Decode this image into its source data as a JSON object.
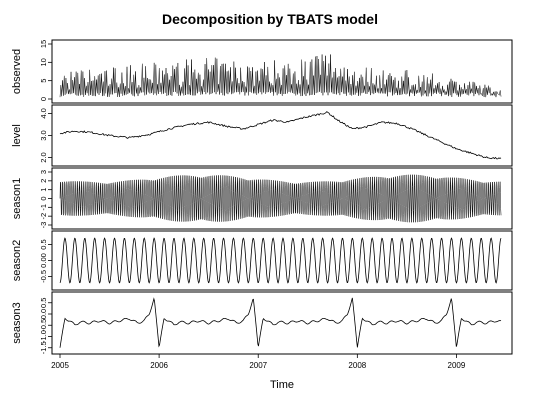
{
  "chart_data": {
    "type": "line",
    "title": "Decomposition by TBATS model",
    "xlabel": "Time",
    "x_ticks": [
      "2005",
      "2006",
      "2007",
      "2008",
      "2009"
    ],
    "xlim": [
      2005,
      2009.5
    ],
    "panels": [
      {
        "name": "observed",
        "ylim": [
          0,
          15
        ],
        "y_ticks": [
          "0",
          "5",
          "10",
          "15"
        ],
        "envelope": {
          "x": [
            2005.0,
            2005.5,
            2006.0,
            2006.5,
            2007.0,
            2007.5,
            2007.7,
            2008.0,
            2008.5,
            2009.0,
            2009.45
          ],
          "low": [
            0.5,
            0.5,
            0.8,
            0.8,
            0.8,
            0.8,
            0.8,
            0.7,
            0.7,
            0.5,
            0.5
          ],
          "high": [
            7.5,
            9.0,
            10.0,
            11.5,
            10.5,
            12.0,
            14.0,
            9.5,
            8.0,
            6.0,
            3.0
          ]
        }
      },
      {
        "name": "level",
        "ylim": [
          1.8,
          4.2
        ],
        "y_ticks": [
          "2.0",
          "3.0",
          "4.0"
        ],
        "points": {
          "x": [
            2005.0,
            2005.15,
            2005.3,
            2005.5,
            2005.7,
            2005.9,
            2006.1,
            2006.3,
            2006.5,
            2006.7,
            2006.85,
            2007.0,
            2007.15,
            2007.3,
            2007.45,
            2007.6,
            2007.7,
            2007.8,
            2007.95,
            2008.1,
            2008.25,
            2008.4,
            2008.55,
            2008.7,
            2008.85,
            2009.0,
            2009.15,
            2009.3,
            2009.45
          ],
          "y": [
            3.1,
            3.2,
            3.15,
            3.0,
            2.9,
            3.05,
            3.3,
            3.5,
            3.6,
            3.4,
            3.3,
            3.5,
            3.7,
            3.6,
            3.8,
            3.95,
            4.05,
            3.7,
            3.3,
            3.4,
            3.6,
            3.55,
            3.3,
            3.0,
            2.7,
            2.4,
            2.2,
            2.0,
            1.95
          ]
        }
      },
      {
        "name": "season1",
        "ylim": [
          -3.0,
          3.0
        ],
        "y_ticks": [
          "-3",
          "-2",
          "-1",
          "0",
          "1",
          "2",
          "3"
        ],
        "period": 0.0192,
        "amplitude": 2.7
      },
      {
        "name": "season2",
        "ylim": [
          -0.8,
          0.8
        ],
        "y_ticks": [
          "-0.5",
          "0.00",
          "0.5"
        ],
        "period": 0.1,
        "amplitude": 0.7
      },
      {
        "name": "season3",
        "ylim": [
          -1.6,
          0.8
        ],
        "y_ticks": [
          "-1.5",
          "-1.0",
          "-0.5",
          "0.0",
          "0.5"
        ],
        "period": 1.0,
        "shape": {
          "x": [
            0.0,
            0.05,
            0.1,
            0.15,
            0.2,
            0.3,
            0.4,
            0.5,
            0.6,
            0.7,
            0.78,
            0.85,
            0.9,
            0.95,
            1.0
          ],
          "y": [
            -1.5,
            -0.2,
            -0.3,
            -0.5,
            -0.35,
            -0.4,
            -0.3,
            -0.4,
            -0.3,
            -0.2,
            -0.4,
            -0.3,
            0.0,
            0.7,
            -1.5
          ]
        }
      }
    ]
  }
}
